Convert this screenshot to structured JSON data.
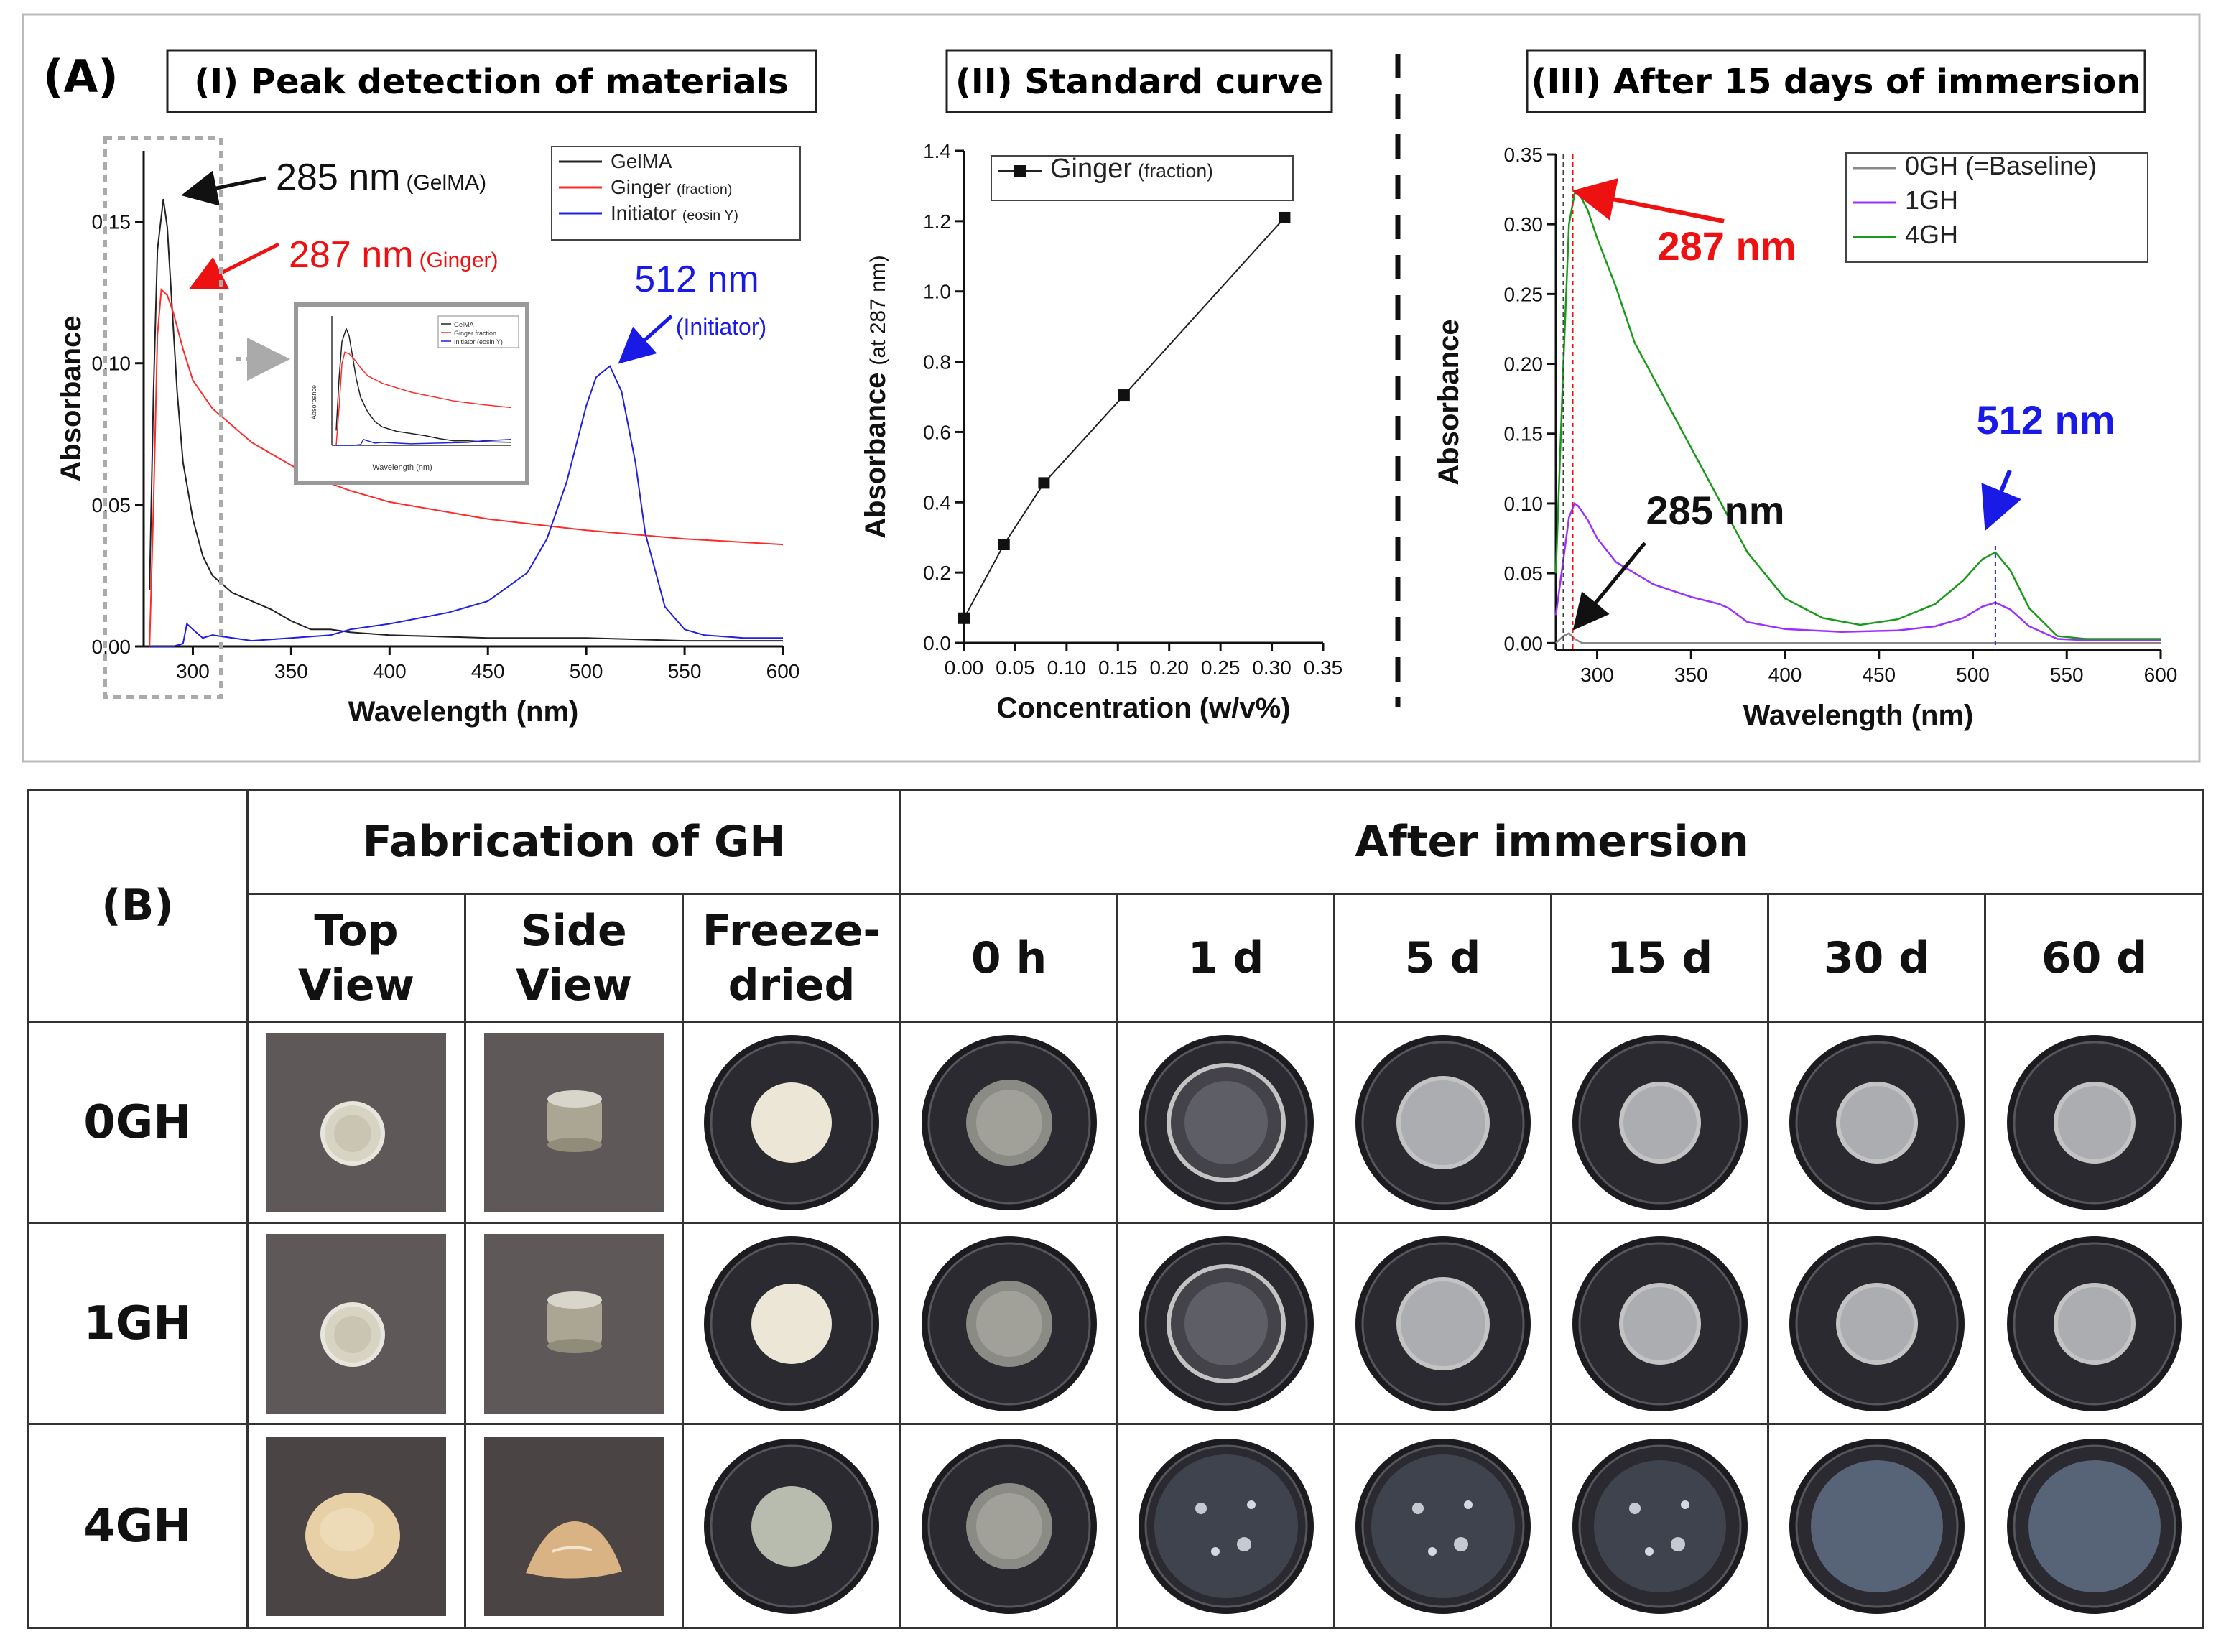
{
  "panel_label_A": "(A)",
  "panel_label_B": "(B)",
  "colors": {
    "gelma": "#222222",
    "ginger": "#ff2a2a",
    "initiator": "#2020e0",
    "baseline": "#888888",
    "gh1": "#9b30ff",
    "gh4": "#1a9a1a",
    "annot_black": "#111111",
    "annot_red": "#ee1111",
    "annot_blue": "#1a1ae6"
  },
  "chart_data": [
    {
      "type": "line",
      "title": "(I) Peak detection of materials",
      "xlabel": "Wavelength (nm)",
      "ylabel": "Absorbance",
      "xlim": [
        275,
        600
      ],
      "ylim": [
        0,
        0.175
      ],
      "xticks": [
        "300",
        "350",
        "400",
        "450",
        "500",
        "550",
        "600"
      ],
      "yticks": [
        "0.00",
        "0.05",
        "0.10",
        "0.15"
      ],
      "legend": [
        {
          "name": "GelMA",
          "sub": ""
        },
        {
          "name": "Ginger",
          "sub": "(fraction)"
        },
        {
          "name": "Initiator",
          "sub": "(eosin Y)"
        }
      ],
      "series": [
        {
          "name": "GelMA",
          "x": [
            278,
            280,
            282,
            285,
            287,
            289,
            292,
            295,
            300,
            305,
            310,
            320,
            330,
            340,
            350,
            360,
            370,
            380,
            400,
            450,
            500,
            550,
            600
          ],
          "y": [
            0.02,
            0.09,
            0.14,
            0.158,
            0.148,
            0.125,
            0.09,
            0.065,
            0.045,
            0.032,
            0.025,
            0.019,
            0.016,
            0.013,
            0.009,
            0.006,
            0.006,
            0.005,
            0.004,
            0.003,
            0.003,
            0.002,
            0.002
          ]
        },
        {
          "name": "Ginger (fraction)",
          "x": [
            278,
            280,
            282,
            284,
            287,
            290,
            295,
            300,
            310,
            320,
            330,
            340,
            350,
            360,
            380,
            400,
            450,
            500,
            550,
            600
          ],
          "y": [
            0.0,
            0.05,
            0.11,
            0.126,
            0.124,
            0.118,
            0.105,
            0.094,
            0.084,
            0.078,
            0.072,
            0.068,
            0.064,
            0.06,
            0.055,
            0.051,
            0.045,
            0.041,
            0.038,
            0.036
          ]
        },
        {
          "name": "Initiator (eosin Y)",
          "x": [
            278,
            290,
            295,
            297,
            300,
            305,
            310,
            330,
            350,
            370,
            380,
            400,
            430,
            450,
            470,
            480,
            490,
            500,
            505,
            512,
            518,
            525,
            530,
            540,
            550,
            560,
            580,
            600
          ],
          "y": [
            0.0,
            0.0,
            0.001,
            0.008,
            0.006,
            0.003,
            0.004,
            0.002,
            0.003,
            0.004,
            0.006,
            0.008,
            0.012,
            0.016,
            0.026,
            0.038,
            0.058,
            0.085,
            0.095,
            0.099,
            0.09,
            0.065,
            0.04,
            0.014,
            0.006,
            0.004,
            0.003,
            0.003
          ]
        }
      ],
      "annotations": [
        {
          "label": "285 nm",
          "sub": "(GelMA)"
        },
        {
          "label": "287 nm",
          "sub": "(Ginger)"
        },
        {
          "label": "512 nm",
          "sub": "(Initiator)"
        }
      ]
    },
    {
      "type": "scatter",
      "title": "(II) Standard curve",
      "xlabel": "Concentration (w/v%)",
      "ylabel": "Absorbance",
      "ylabel_sub": "(at 287 nm)",
      "xlim": [
        0,
        0.35
      ],
      "ylim": [
        0,
        1.4
      ],
      "xticks": [
        "0.00",
        "0.05",
        "0.10",
        "0.15",
        "0.20",
        "0.25",
        "0.30",
        "0.35"
      ],
      "yticks": [
        "0.0",
        "0.2",
        "0.4",
        "0.6",
        "0.8",
        "1.0",
        "1.2",
        "1.4"
      ],
      "legend": [
        {
          "name": "Ginger",
          "sub": "(fraction)"
        }
      ],
      "series": [
        {
          "name": "Ginger (fraction)",
          "x": [
            0.0,
            0.039,
            0.078,
            0.156,
            0.3125
          ],
          "y": [
            0.07,
            0.28,
            0.455,
            0.705,
            1.21
          ]
        }
      ]
    },
    {
      "type": "line",
      "title": "(III) After 15 days of immersion",
      "xlabel": "Wavelength (nm)",
      "ylabel": "Absorbance",
      "xlim": [
        278,
        600
      ],
      "ylim": [
        -0.005,
        0.35
      ],
      "xticks": [
        "300",
        "350",
        "400",
        "450",
        "500",
        "550",
        "600"
      ],
      "yticks": [
        "0.00",
        "0.05",
        "0.10",
        "0.15",
        "0.20",
        "0.25",
        "0.30",
        "0.35"
      ],
      "legend": [
        {
          "name": "0GH (=Baseline)",
          "sub": ""
        },
        {
          "name": "1GH",
          "sub": ""
        },
        {
          "name": "4GH",
          "sub": ""
        }
      ],
      "series": [
        {
          "name": "0GH (=Baseline)",
          "x": [
            278,
            282,
            285,
            288,
            292,
            300,
            350,
            400,
            450,
            500,
            550,
            600
          ],
          "y": [
            0.0,
            0.005,
            0.007,
            0.003,
            0.0,
            0.0,
            0.0,
            0.0,
            0.0,
            0.0,
            0.0,
            0.0
          ]
        },
        {
          "name": "1GH",
          "x": [
            278,
            282,
            285,
            288,
            290,
            295,
            300,
            310,
            330,
            350,
            365,
            370,
            380,
            400,
            430,
            460,
            480,
            495,
            505,
            512,
            520,
            530,
            545,
            560,
            600
          ],
          "y": [
            0.02,
            0.06,
            0.09,
            0.1,
            0.098,
            0.088,
            0.075,
            0.058,
            0.042,
            0.033,
            0.028,
            0.025,
            0.015,
            0.01,
            0.008,
            0.009,
            0.012,
            0.018,
            0.026,
            0.029,
            0.024,
            0.012,
            0.003,
            0.002,
            0.002
          ]
        },
        {
          "name": "4GH",
          "x": [
            278,
            282,
            285,
            288,
            290,
            295,
            300,
            310,
            320,
            340,
            360,
            380,
            400,
            420,
            440,
            460,
            480,
            495,
            505,
            512,
            520,
            530,
            545,
            560,
            600
          ],
          "y": [
            0.05,
            0.2,
            0.3,
            0.322,
            0.323,
            0.31,
            0.29,
            0.255,
            0.215,
            0.165,
            0.115,
            0.065,
            0.032,
            0.018,
            0.013,
            0.017,
            0.028,
            0.045,
            0.06,
            0.065,
            0.052,
            0.025,
            0.005,
            0.003,
            0.003
          ]
        }
      ],
      "annotations": [
        {
          "label": "287 nm",
          "sub": ""
        },
        {
          "label": "512 nm",
          "sub": ""
        },
        {
          "label": "285 nm",
          "sub": ""
        }
      ]
    }
  ],
  "inset": {
    "legend": [
      "GelMA",
      "Ginger fraction",
      "Initiator (eosin Y)"
    ],
    "xlabel": "Wavelength (nm)",
    "ylabel": "Absorbance"
  },
  "table": {
    "group_fabrication": "Fabrication of GH",
    "group_after": "After immersion",
    "fab_columns": [
      "Top\nView",
      "Side\nView",
      "Freeze-\ndried"
    ],
    "time_columns": [
      "0 h",
      "1 d",
      "5 d",
      "15 d",
      "30 d",
      "60 d"
    ],
    "rows": [
      "0GH",
      "1GH",
      "4GH"
    ]
  }
}
